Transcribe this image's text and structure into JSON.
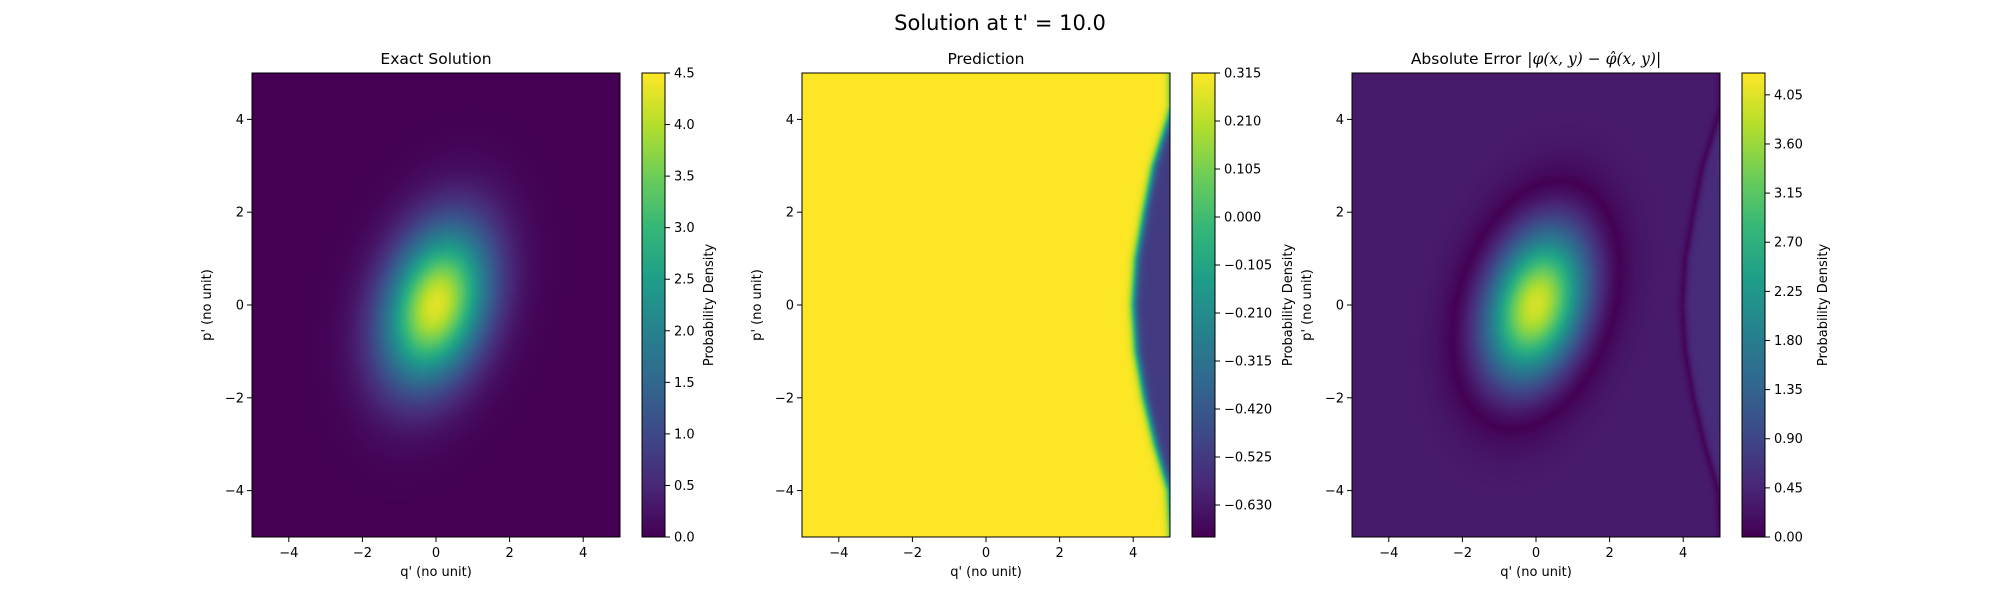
{
  "figure": {
    "suptitle": "Solution at t' = 10.0"
  },
  "chart_data": [
    {
      "type": "heatmap",
      "title": "Exact Solution",
      "xlabel": "q' (no unit)",
      "ylabel": "p' (no unit)",
      "xlim": [
        -5,
        5
      ],
      "ylim": [
        -5,
        5
      ],
      "xticks": [
        "−4",
        "−2",
        "0",
        "2",
        "4"
      ],
      "yticks": [
        "−4",
        "−2",
        "0",
        "2",
        "4"
      ],
      "colormap": "viridis",
      "colorbar": {
        "label": "Probability Density",
        "range": [
          0.0,
          4.5
        ],
        "ticks": [
          "0.0",
          "0.5",
          "1.0",
          "1.5",
          "2.0",
          "2.5",
          "3.0",
          "3.5",
          "4.0",
          "4.5"
        ]
      },
      "field": {
        "description_kind": "tilted gaussian",
        "peak": 4.3,
        "center": [
          0,
          0
        ],
        "sigma_major": 1.25,
        "sigma_minor": 0.9,
        "tilt_deg": 60
      }
    },
    {
      "type": "heatmap",
      "title": "Prediction",
      "xlabel": "q' (no unit)",
      "ylabel": "p' (no unit)",
      "xlim": [
        -5,
        5
      ],
      "ylim": [
        -5,
        5
      ],
      "xticks": [
        "−4",
        "−2",
        "0",
        "2",
        "4"
      ],
      "yticks": [
        "−4",
        "−2",
        "0",
        "2",
        "4"
      ],
      "colormap": "viridis",
      "colorbar": {
        "label": "Probability Density",
        "range": [
          -0.7,
          0.315
        ],
        "ticks": [
          "0.315",
          "0.210",
          "0.105",
          "0.000",
          "−0.105",
          "−0.210",
          "−0.315",
          "−0.420",
          "−0.525",
          "−0.630"
        ],
        "tick_values": [
          0.315,
          0.21,
          0.105,
          0.0,
          -0.105,
          -0.21,
          -0.315,
          -0.42,
          -0.525,
          -0.63
        ]
      },
      "field": {
        "description_kind": "two regions",
        "left_value": 0.315,
        "right_value": -0.525,
        "boundary_q_at_p": [
          [
            -5,
            5.05
          ],
          [
            -4,
            4.97
          ],
          [
            -3,
            4.6
          ],
          [
            -2,
            4.3
          ],
          [
            -1,
            4.08
          ],
          [
            0,
            4.0
          ],
          [
            1,
            4.08
          ],
          [
            2,
            4.3
          ],
          [
            3,
            4.55
          ],
          [
            4,
            4.95
          ],
          [
            4.3,
            5.05
          ]
        ]
      }
    },
    {
      "type": "heatmap",
      "title": "Absolute Error",
      "title_math": "|φ(x, y) − φ̂(x, y)|",
      "xlabel": "q' (no unit)",
      "ylabel": "p' (no unit)",
      "xlim": [
        -5,
        5
      ],
      "ylim": [
        -5,
        5
      ],
      "xticks": [
        "−4",
        "−2",
        "0",
        "2",
        "4"
      ],
      "yticks": [
        "−4",
        "−2",
        "0",
        "2",
        "4"
      ],
      "colormap": "viridis",
      "colorbar": {
        "label": "Probability Density",
        "range": [
          0.0,
          4.25
        ],
        "ticks": [
          "0.00",
          "0.45",
          "0.90",
          "1.35",
          "1.80",
          "2.25",
          "2.70",
          "3.15",
          "3.60",
          "4.05"
        ],
        "tick_values": [
          0,
          0.45,
          0.9,
          1.35,
          1.8,
          2.25,
          2.7,
          3.15,
          3.6,
          4.05
        ]
      },
      "field": {
        "description_kind": "abs(exact − prediction)",
        "peak": 4.0
      }
    }
  ]
}
